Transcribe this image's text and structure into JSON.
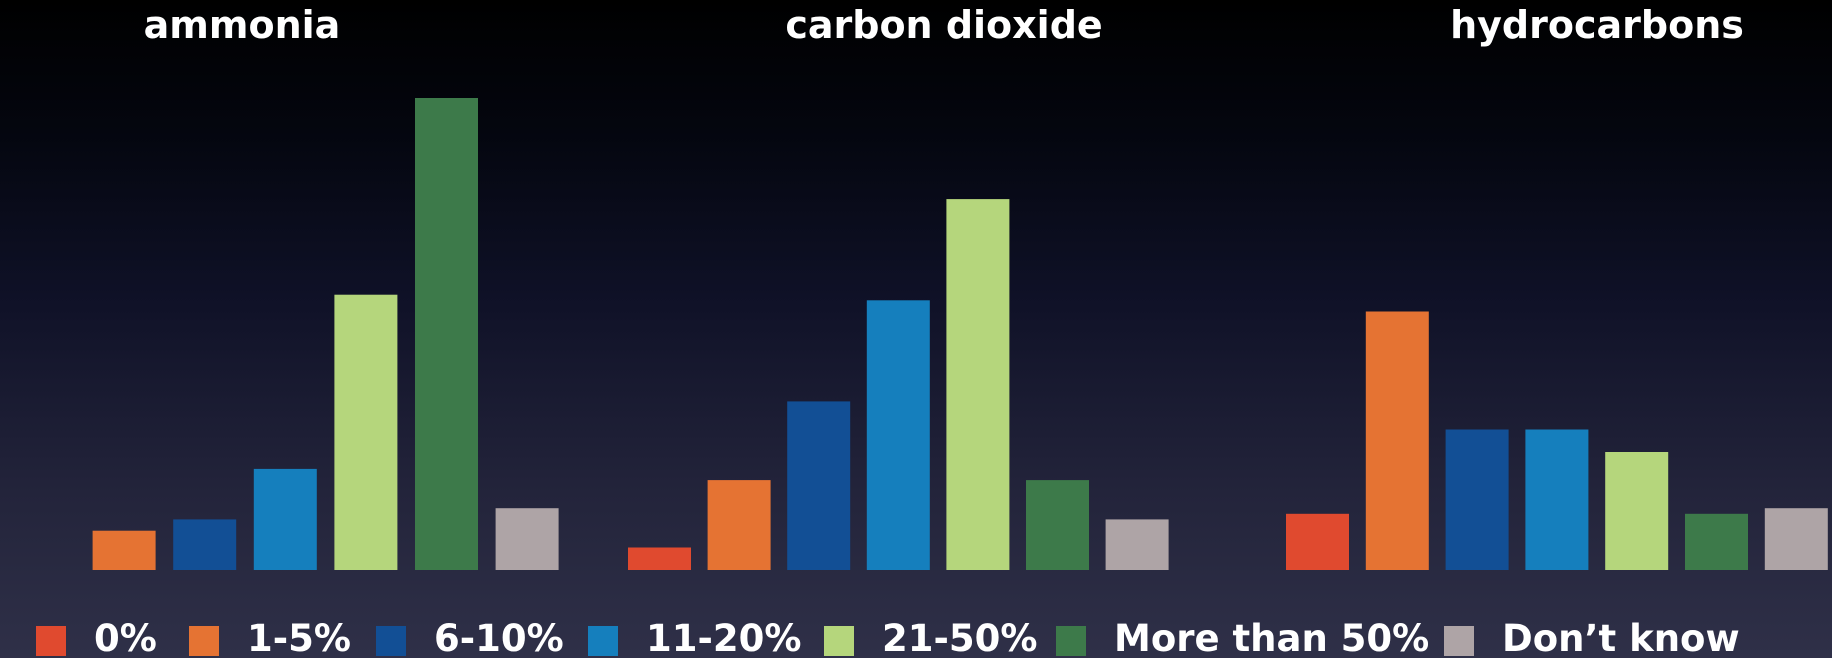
{
  "legend": [
    {
      "label": "0%",
      "color": "#e04a2f"
    },
    {
      "label": "1-5%",
      "color": "#e57333"
    },
    {
      "label": "6-10%",
      "color": "#124f95"
    },
    {
      "label": "11-20%",
      "color": "#157fbd"
    },
    {
      "label": "21-50%",
      "color": "#b5d67c"
    },
    {
      "label": "More than 50%",
      "color": "#3d7a4a"
    },
    {
      "label": "Don’t know",
      "color": "#aea4a6"
    }
  ],
  "chart_data": [
    {
      "type": "bar",
      "title": "ammonia",
      "categories": [
        "0%",
        "1-5%",
        "6-10%",
        "11-20%",
        "21-50%",
        "More than 50%",
        "Don’t know"
      ],
      "values": [
        0,
        7,
        9,
        18,
        49,
        84,
        11
      ],
      "ylim": [
        0,
        90
      ]
    },
    {
      "type": "bar",
      "title": "carbon dioxide",
      "categories": [
        "0%",
        "1-5%",
        "6-10%",
        "11-20%",
        "21-50%",
        "More than 50%",
        "Don’t know"
      ],
      "values": [
        4,
        16,
        30,
        48,
        66,
        16,
        9
      ],
      "ylim": [
        0,
        90
      ]
    },
    {
      "type": "bar",
      "title": "hydrocarbons",
      "categories": [
        "0%",
        "1-5%",
        "6-10%",
        "11-20%",
        "21-50%",
        "More than 50%",
        "Don’t know"
      ],
      "values": [
        10,
        46,
        25,
        25,
        21,
        10,
        11
      ],
      "ylim": [
        0,
        90
      ]
    }
  ]
}
